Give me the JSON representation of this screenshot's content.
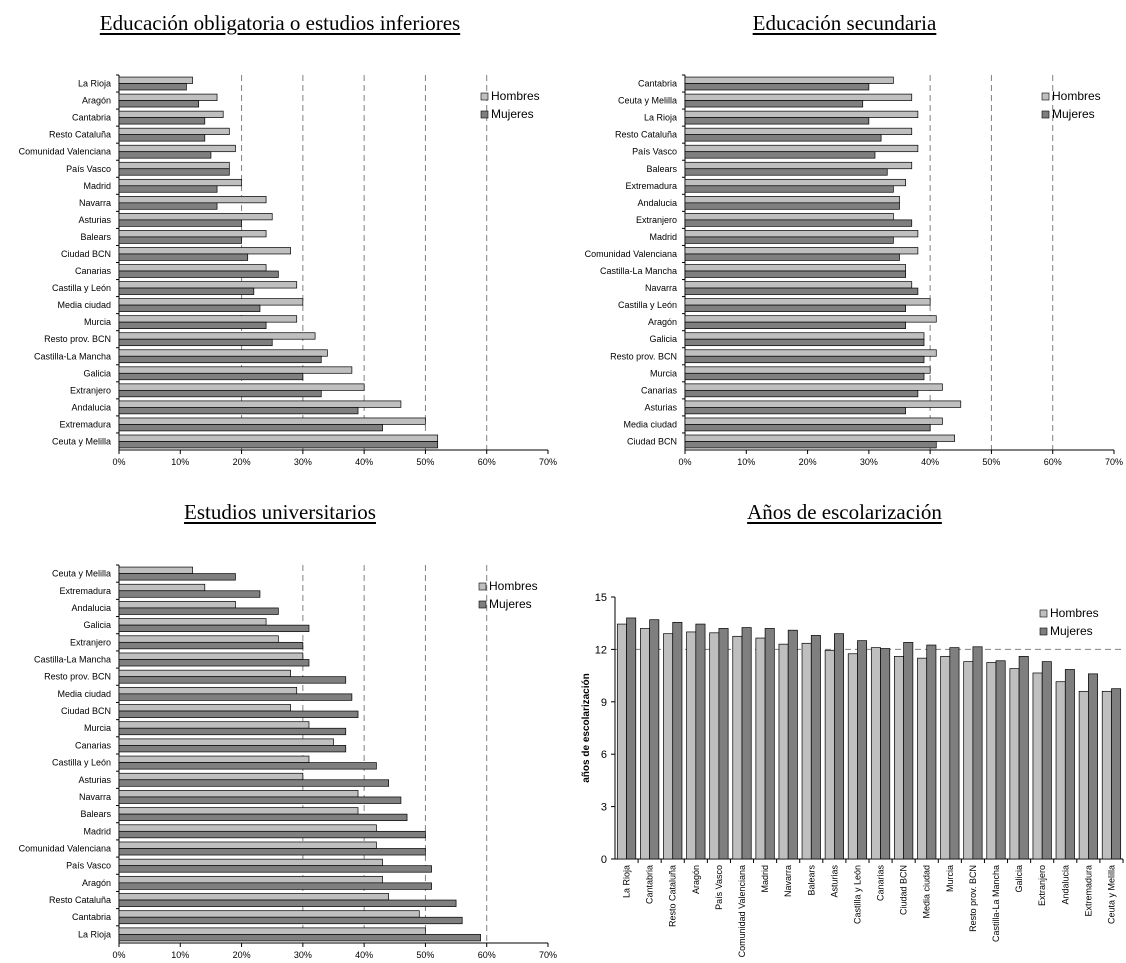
{
  "legend_labels": {
    "hombres": "Hombres",
    "mujeres": "Mujeres"
  },
  "colors": {
    "hombres": "#BFBFBF",
    "mujeres": "#7F7F7F",
    "stroke": "#000000",
    "gridline": "#808080"
  },
  "chart_data": [
    {
      "type": "bar",
      "orientation": "horizontal",
      "title": "Educación obligatoria o estudios inferiores",
      "xlim": [
        0,
        0.7
      ],
      "xticks": [
        "0%",
        "10%",
        "20%",
        "30%",
        "40%",
        "50%",
        "60%",
        "70%"
      ],
      "gridlines": [
        0.2,
        0.3,
        0.4,
        0.5,
        0.6
      ],
      "legend": "top-right",
      "categories": [
        "La Rioja",
        "Aragón",
        "Cantabria",
        "Resto Cataluña",
        "Comunidad Valenciana",
        "País Vasco",
        "Madrid",
        "Navarra",
        "Asturias",
        "Balears",
        "Ciudad BCN",
        "Canarias",
        "Castilla y León",
        "Media ciudad",
        "Murcia",
        "Resto prov. BCN",
        "Castilla-La Mancha",
        "Galicia",
        "Extranjero",
        "Andalucia",
        "Extremadura",
        "Ceuta y Melilla"
      ],
      "series": [
        {
          "name": "Hombres",
          "values": [
            0.12,
            0.16,
            0.17,
            0.18,
            0.19,
            0.18,
            0.2,
            0.24,
            0.25,
            0.24,
            0.28,
            0.24,
            0.29,
            0.3,
            0.29,
            0.32,
            0.34,
            0.38,
            0.4,
            0.46,
            0.5,
            0.52
          ]
        },
        {
          "name": "Mujeres",
          "values": [
            0.11,
            0.13,
            0.14,
            0.14,
            0.15,
            0.18,
            0.16,
            0.16,
            0.2,
            0.2,
            0.21,
            0.26,
            0.22,
            0.23,
            0.24,
            0.25,
            0.33,
            0.3,
            0.33,
            0.39,
            0.43,
            0.52
          ]
        }
      ]
    },
    {
      "type": "bar",
      "orientation": "horizontal",
      "title": "Educación secundaria",
      "xlim": [
        0,
        0.7
      ],
      "xticks": [
        "0%",
        "10%",
        "20%",
        "30%",
        "40%",
        "50%",
        "60%",
        "70%"
      ],
      "gridlines": [
        0.4,
        0.5,
        0.6
      ],
      "legend": "top-right",
      "categories": [
        "Cantabria",
        "Ceuta y Melilla",
        "La Rioja",
        "Resto Cataluña",
        "País Vasco",
        "Balears",
        "Extremadura",
        "Andalucia",
        "Extranjero",
        "Madrid",
        "Comunidad Valenciana",
        "Castilla-La Mancha",
        "Navarra",
        "Castilla y León",
        "Aragón",
        "Galicia",
        "Resto prov. BCN",
        "Murcia",
        "Canarias",
        "Asturias",
        "Media ciudad",
        "Ciudad BCN"
      ],
      "series": [
        {
          "name": "Hombres",
          "values": [
            0.34,
            0.37,
            0.38,
            0.37,
            0.38,
            0.37,
            0.36,
            0.35,
            0.34,
            0.38,
            0.38,
            0.36,
            0.37,
            0.4,
            0.41,
            0.39,
            0.41,
            0.4,
            0.42,
            0.45,
            0.42,
            0.44
          ]
        },
        {
          "name": "Mujeres",
          "values": [
            0.3,
            0.29,
            0.3,
            0.32,
            0.31,
            0.33,
            0.34,
            0.35,
            0.37,
            0.34,
            0.35,
            0.36,
            0.38,
            0.36,
            0.36,
            0.39,
            0.39,
            0.39,
            0.38,
            0.36,
            0.4,
            0.41
          ]
        }
      ]
    },
    {
      "type": "bar",
      "orientation": "horizontal",
      "title": "Estudios universitarios",
      "xlim": [
        0,
        0.7
      ],
      "xticks": [
        "0%",
        "10%",
        "20%",
        "30%",
        "40%",
        "50%",
        "60%",
        "70%"
      ],
      "gridlines": [
        0.3,
        0.4,
        0.5,
        0.6
      ],
      "legend": "top-right",
      "categories": [
        "Ceuta y Melilla",
        "Extremadura",
        "Andalucia",
        "Galicia",
        "Extranjero",
        "Castilla-La Mancha",
        "Resto prov. BCN",
        "Media ciudad",
        "Ciudad BCN",
        "Murcia",
        "Canarias",
        "Castilla y León",
        "Asturias",
        "Navarra",
        "Balears",
        "Madrid",
        "Comunidad Valenciana",
        "País Vasco",
        "Aragón",
        "Resto Cataluña",
        "Cantabria",
        "La Rioja"
      ],
      "series": [
        {
          "name": "Hombres",
          "values": [
            0.12,
            0.14,
            0.19,
            0.24,
            0.26,
            0.3,
            0.28,
            0.29,
            0.28,
            0.31,
            0.35,
            0.31,
            0.3,
            0.39,
            0.39,
            0.42,
            0.42,
            0.43,
            0.43,
            0.44,
            0.49,
            0.5
          ]
        },
        {
          "name": "Mujeres",
          "values": [
            0.19,
            0.23,
            0.26,
            0.31,
            0.3,
            0.31,
            0.37,
            0.38,
            0.39,
            0.37,
            0.37,
            0.42,
            0.44,
            0.46,
            0.47,
            0.5,
            0.5,
            0.51,
            0.51,
            0.55,
            0.56,
            0.59
          ]
        }
      ]
    },
    {
      "type": "bar",
      "orientation": "vertical",
      "title": "Años de escolarización",
      "ylabel": "años de escolarización",
      "ylim": [
        0,
        15
      ],
      "yticks": [
        "0",
        "3",
        "6",
        "9",
        "12",
        "15"
      ],
      "gridlines": [
        12
      ],
      "legend": "top-right",
      "categories": [
        "La Rioja",
        "Cantabria",
        "Resto Cataluña",
        "Aragón",
        "País Vasco",
        "Comunidad Valenciana",
        "Madrid",
        "Navarra",
        "Balears",
        "Asturias",
        "Castilla y León",
        "Canarias",
        "Ciudad BCN",
        "Media ciudad",
        "Murcia",
        "Resto prov. BCN",
        "Castilla-La Mancha",
        "Galicia",
        "Extranjero",
        "Andalucia",
        "Extremadura",
        "Ceuta y Melilla"
      ],
      "series": [
        {
          "name": "Hombres",
          "values": [
            13.45,
            13.2,
            12.9,
            13.0,
            12.95,
            12.75,
            12.65,
            12.3,
            12.35,
            11.95,
            11.75,
            12.1,
            11.6,
            11.5,
            11.6,
            11.3,
            11.25,
            10.9,
            10.65,
            10.15,
            9.6,
            9.6
          ]
        },
        {
          "name": "Mujeres",
          "values": [
            13.8,
            13.7,
            13.55,
            13.45,
            13.2,
            13.25,
            13.2,
            13.1,
            12.8,
            12.9,
            12.5,
            12.05,
            12.4,
            12.25,
            12.1,
            12.15,
            11.35,
            11.6,
            11.3,
            10.85,
            10.6,
            9.75
          ]
        }
      ]
    }
  ]
}
